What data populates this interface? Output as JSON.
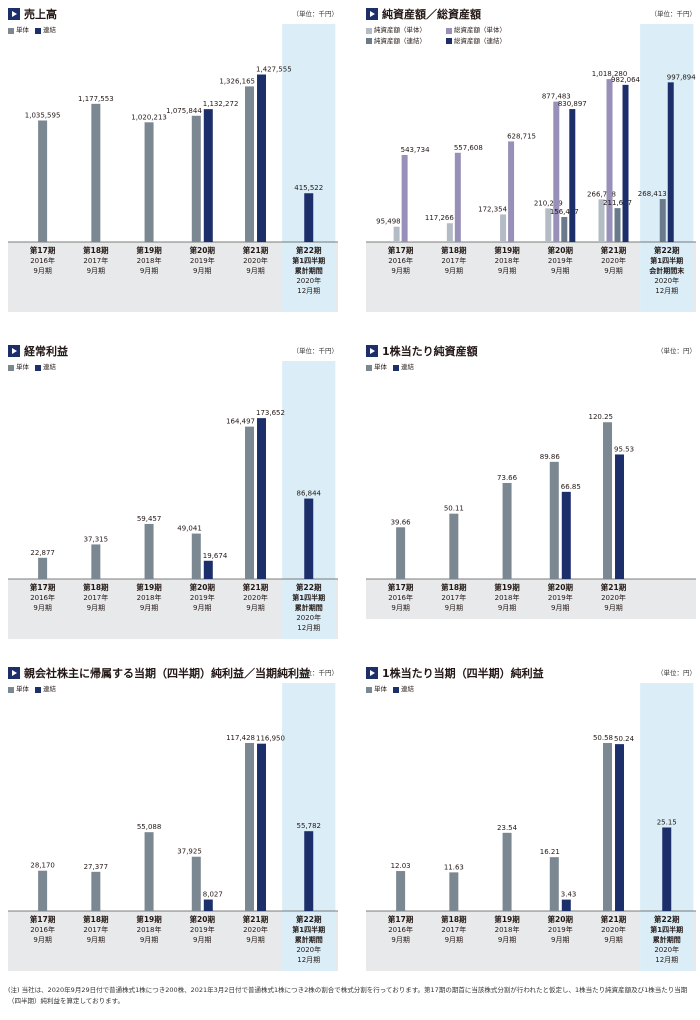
{
  "colors": {
    "single": "#7b8891",
    "consol": "#1d2f6b",
    "net_single": "#b3bcc4",
    "total_single": "#9890b8",
    "net_consol": "#6a7a8a",
    "total_consol": "#1d2f6b",
    "highlight": "#dbeef8",
    "label_bg": "#e8e9ea"
  },
  "note": "(注) 当社は、2020年9月29日付で普通株式1株につき200株、2021年3月2日付で普通株式1株につき2株の割合で株式分割を行っております。第17期の期首に当該株式分割が行われたと仮定し、1株当たり純資産額及び1株当たり当期（四半期）純利益を算定しております。",
  "chart_data": [
    {
      "id": "sales",
      "type": "bar",
      "title": "売上高",
      "unit": "（単位：千円）",
      "categories": [
        [
          "第17期",
          "2016年",
          "9月期"
        ],
        [
          "第18期",
          "2017年",
          "9月期"
        ],
        [
          "第19期",
          "2018年",
          "9月期"
        ],
        [
          "第20期",
          "2019年",
          "9月期"
        ],
        [
          "第21期",
          "2020年",
          "9月期"
        ],
        [
          "第22期",
          "第1四半期",
          "累計期間",
          "2020年",
          "12月期"
        ]
      ],
      "highlight_last": true,
      "legend": [
        {
          "name": "単体",
          "color": "single"
        },
        {
          "name": "連結",
          "color": "consol"
        }
      ],
      "series": [
        {
          "name": "単体",
          "color": "single",
          "values": [
            1035595,
            1177553,
            1020213,
            1075844,
            1326165,
            null
          ],
          "labels": [
            "1,035,595",
            "1,177,553",
            "1,020,213",
            "1,075,844",
            "1,326,165",
            ""
          ]
        },
        {
          "name": "連結",
          "color": "consol",
          "values": [
            null,
            null,
            null,
            1132272,
            1427555,
            415522
          ],
          "labels": [
            "",
            "",
            "",
            "1,132,272",
            "1,427,555",
            "415,522"
          ]
        }
      ],
      "ymax": 1500000
    },
    {
      "id": "assets",
      "type": "bar",
      "title": "純資産額／総資産額",
      "unit": "（単位：千円）",
      "categories": [
        [
          "第17期",
          "2016年",
          "9月期"
        ],
        [
          "第18期",
          "2017年",
          "9月期"
        ],
        [
          "第19期",
          "2018年",
          "9月期"
        ],
        [
          "第20期",
          "2019年",
          "9月期"
        ],
        [
          "第21期",
          "2020年",
          "9月期"
        ],
        [
          "第22期",
          "第1四半期",
          "会計期間末",
          "2020年",
          "12月期"
        ]
      ],
      "highlight_last": true,
      "legend": [
        {
          "name": "純資産額（単体）",
          "color": "net_single"
        },
        {
          "name": "総資産額（単体）",
          "color": "total_single"
        },
        {
          "name": "純資産額（連結）",
          "color": "net_consol"
        },
        {
          "name": "総資産額（連結）",
          "color": "total_consol"
        }
      ],
      "series": [
        {
          "name": "純資産額（単体）",
          "color": "net_single",
          "values": [
            95498,
            117266,
            172354,
            210279,
            266708,
            null
          ],
          "labels": [
            "95,498",
            "117,266",
            "172,354",
            "210,279",
            "266,708",
            ""
          ]
        },
        {
          "name": "総資産額（単体）",
          "color": "total_single",
          "values": [
            543734,
            557608,
            628715,
            877483,
            1018280,
            null
          ],
          "labels": [
            "543,734",
            "557,608",
            "628,715",
            "877,483",
            "1,018,280",
            ""
          ]
        },
        {
          "name": "純資産額（連結）",
          "color": "net_consol",
          "values": [
            null,
            null,
            null,
            156427,
            211687,
            268413
          ],
          "labels": [
            "",
            "",
            "",
            "156,427",
            "211,687",
            "268,413"
          ]
        },
        {
          "name": "総資産額（連結）",
          "color": "total_consol",
          "values": [
            null,
            null,
            null,
            830897,
            982064,
            997894
          ],
          "labels": [
            "",
            "",
            "",
            "830,897",
            "982,064",
            "997,894"
          ]
        }
      ],
      "ymax": 1100000
    },
    {
      "id": "ordinary",
      "type": "bar",
      "title": "経常利益",
      "unit": "（単位：千円）",
      "categories": [
        [
          "第17期",
          "2016年",
          "9月期"
        ],
        [
          "第18期",
          "2017年",
          "9月期"
        ],
        [
          "第19期",
          "2018年",
          "9月期"
        ],
        [
          "第20期",
          "2019年",
          "9月期"
        ],
        [
          "第21期",
          "2020年",
          "9月期"
        ],
        [
          "第22期",
          "第1四半期",
          "累計期間",
          "2020年",
          "12月期"
        ]
      ],
      "highlight_last": true,
      "legend": [
        {
          "name": "単体",
          "color": "single"
        },
        {
          "name": "連結",
          "color": "consol"
        }
      ],
      "series": [
        {
          "name": "単体",
          "color": "single",
          "values": [
            22877,
            37315,
            59457,
            49041,
            164497,
            null
          ],
          "labels": [
            "22,877",
            "37,315",
            "59,457",
            "49,041",
            "164,497",
            ""
          ]
        },
        {
          "name": "連結",
          "color": "consol",
          "values": [
            null,
            null,
            null,
            19674,
            173652,
            86844
          ],
          "labels": [
            "",
            "",
            "",
            "19,674",
            "173,652",
            "86,844"
          ]
        }
      ],
      "ymax": 190000
    },
    {
      "id": "bps",
      "type": "bar",
      "title": "1株当たり純資産額",
      "unit": "（単位：円）",
      "categories": [
        [
          "第17期",
          "2016年",
          "9月期"
        ],
        [
          "第18期",
          "2017年",
          "9月期"
        ],
        [
          "第19期",
          "2018年",
          "9月期"
        ],
        [
          "第20期",
          "2019年",
          "9月期"
        ],
        [
          "第21期",
          "2020年",
          "9月期"
        ]
      ],
      "highlight_last": false,
      "legend": [
        {
          "name": "単体",
          "color": "single"
        },
        {
          "name": "連結",
          "color": "consol"
        }
      ],
      "series": [
        {
          "name": "単体",
          "color": "single",
          "values": [
            39.66,
            50.11,
            73.66,
            89.86,
            120.25
          ],
          "labels": [
            "39.66",
            "50.11",
            "73.66",
            "89.86",
            "120.25"
          ]
        },
        {
          "name": "連結",
          "color": "consol",
          "values": [
            null,
            null,
            null,
            66.85,
            95.53
          ],
          "labels": [
            "",
            "",
            "",
            "66.85",
            "95.53"
          ]
        }
      ],
      "ymax": 135
    },
    {
      "id": "netincome",
      "type": "bar",
      "title": "親会社株主に帰属する当期（四半期）純利益／当期純利益",
      "unit": "（単位：千円）",
      "categories": [
        [
          "第17期",
          "2016年",
          "9月期"
        ],
        [
          "第18期",
          "2017年",
          "9月期"
        ],
        [
          "第19期",
          "2018年",
          "9月期"
        ],
        [
          "第20期",
          "2019年",
          "9月期"
        ],
        [
          "第21期",
          "2020年",
          "9月期"
        ],
        [
          "第22期",
          "第1四半期",
          "累計期間",
          "2020年",
          "12月期"
        ]
      ],
      "highlight_last": true,
      "legend": [
        {
          "name": "単体",
          "color": "single"
        },
        {
          "name": "連結",
          "color": "consol"
        }
      ],
      "series": [
        {
          "name": "単体",
          "color": "single",
          "values": [
            28170,
            27377,
            55088,
            37925,
            117428,
            null
          ],
          "labels": [
            "28,170",
            "27,377",
            "55,088",
            "37,925",
            "117,428",
            ""
          ]
        },
        {
          "name": "連結",
          "color": "consol",
          "values": [
            null,
            null,
            null,
            8027,
            116950,
            55782
          ],
          "labels": [
            "",
            "",
            "",
            "8,027",
            "116,950",
            "55,782"
          ]
        }
      ],
      "ymax": 130000
    },
    {
      "id": "eps",
      "type": "bar",
      "title": "1株当たり当期（四半期）純利益",
      "unit": "（単位：円）",
      "categories": [
        [
          "第17期",
          "2016年",
          "9月期"
        ],
        [
          "第18期",
          "2017年",
          "9月期"
        ],
        [
          "第19期",
          "2018年",
          "9月期"
        ],
        [
          "第20期",
          "2019年",
          "9月期"
        ],
        [
          "第21期",
          "2020年",
          "9月期"
        ],
        [
          "第22期",
          "第1四半期",
          "累計期間",
          "2020年",
          "12月期"
        ]
      ],
      "highlight_last": true,
      "legend": [
        {
          "name": "単体",
          "color": "single"
        },
        {
          "name": "連結",
          "color": "consol"
        }
      ],
      "series": [
        {
          "name": "単体",
          "color": "single",
          "values": [
            12.03,
            11.63,
            23.54,
            16.21,
            50.58,
            null
          ],
          "labels": [
            "12.03",
            "11.63",
            "23.54",
            "16.21",
            "50.58",
            ""
          ]
        },
        {
          "name": "連結",
          "color": "consol",
          "values": [
            null,
            null,
            null,
            3.43,
            50.24,
            25.15
          ],
          "labels": [
            "",
            "",
            "",
            "3.43",
            "50.24",
            "25.15"
          ]
        }
      ],
      "ymax": 56
    }
  ]
}
